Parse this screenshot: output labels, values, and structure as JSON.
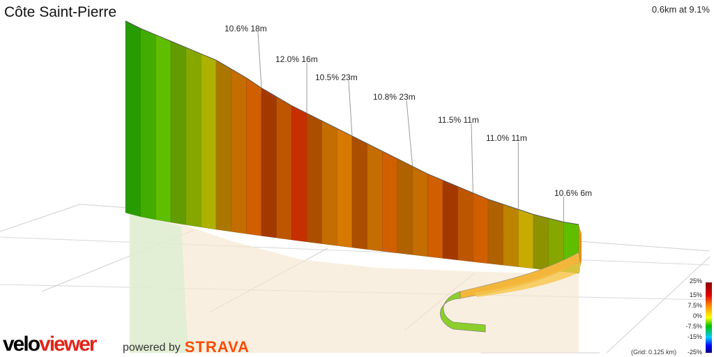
{
  "header": {
    "title": "Côte Saint-Pierre",
    "summary": "0.6km at 9.1%"
  },
  "chart_data": {
    "type": "area",
    "title": "Côte Saint-Pierre",
    "xlabel": "",
    "ylabel": "",
    "distance_km": 0.6,
    "average_gradient_pct": 9.1,
    "gradient_labels": [
      "10.6% 18m",
      "12.0% 16m",
      "10.5% 23m",
      "10.8% 23m",
      "11.5% 11m",
      "11.0% 11m",
      "10.6% 6m"
    ],
    "segments": [
      {
        "g": 2,
        "h": 6
      },
      {
        "g": 3,
        "h": 5
      },
      {
        "g": 4,
        "h": 5
      },
      {
        "g": 5,
        "h": 5
      },
      {
        "g": 6,
        "h": 5
      },
      {
        "g": 7,
        "h": 5
      },
      {
        "g": 9,
        "h": 7
      },
      {
        "g": 10,
        "h": 7
      },
      {
        "g": 11,
        "h": 8
      },
      {
        "g": 12,
        "h": 7
      },
      {
        "g": 11,
        "h": 7
      },
      {
        "g": 13,
        "h": 6
      },
      {
        "g": 11,
        "h": 6
      },
      {
        "g": 10,
        "h": 6
      },
      {
        "g": 10,
        "h": 6
      },
      {
        "g": 11,
        "h": 6
      },
      {
        "g": 10,
        "h": 6
      },
      {
        "g": 11,
        "h": 6
      },
      {
        "g": 10,
        "h": 6
      },
      {
        "g": 10,
        "h": 6
      },
      {
        "g": 11,
        "h": 5
      },
      {
        "g": 12,
        "h": 5
      },
      {
        "g": 11,
        "h": 5
      },
      {
        "g": 11,
        "h": 5
      },
      {
        "g": 10,
        "h": 4
      },
      {
        "g": 9,
        "h": 4
      },
      {
        "g": 8,
        "h": 4
      },
      {
        "g": 7,
        "h": 3
      },
      {
        "g": 6,
        "h": 3
      },
      {
        "g": 4,
        "h": 2
      }
    ],
    "legend": {
      "labels": [
        "25%",
        "15%",
        "7.5%",
        "0%",
        "-7.5%",
        "-15%",
        "-25%"
      ],
      "grid_note": "(Grid: 0.125 km)"
    }
  },
  "branding": {
    "logo_part1": "velo",
    "logo_part2": "viewer",
    "powered_by": "powered by",
    "strava": "STRAVA"
  }
}
